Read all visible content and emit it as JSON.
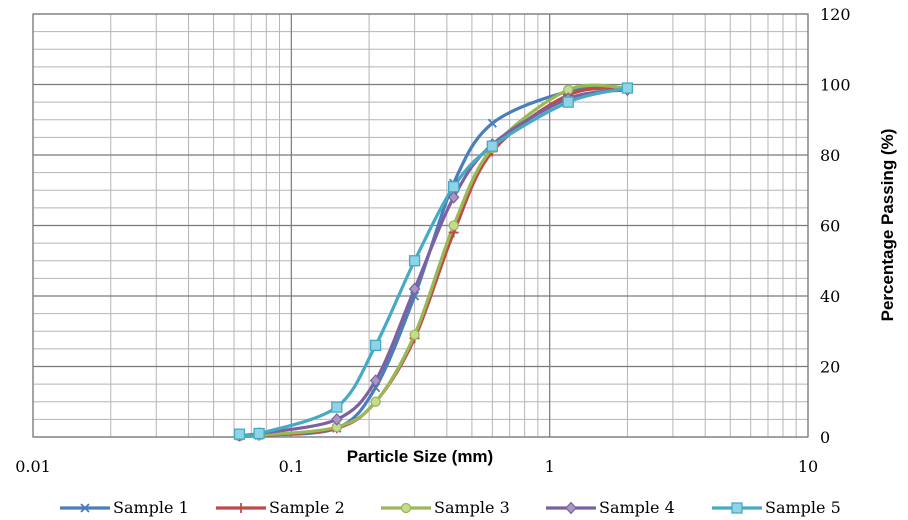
{
  "chart_data": {
    "type": "line",
    "title": "",
    "xlabel": "Particle Size (mm)",
    "ylabel": "Percentage Passing (%)",
    "x_scale": "log",
    "xlim": [
      0.01,
      10
    ],
    "ylim": [
      0,
      120
    ],
    "x_tick_labels": [
      "0.01",
      "0.1",
      "1",
      "10"
    ],
    "y_tick_labels": [
      "0",
      "20",
      "40",
      "60",
      "80",
      "100",
      "120"
    ],
    "grid": true,
    "legend_position": "bottom",
    "series": [
      {
        "name": "Sample 1",
        "color": "#4a7ebb",
        "marker": "x",
        "x": [
          0.063,
          0.075,
          0.15,
          0.212,
          0.3,
          0.425,
          0.6,
          1.18,
          2.0
        ],
        "y": [
          0.3,
          0.5,
          2.5,
          14,
          40,
          72,
          89,
          98,
          99
        ]
      },
      {
        "name": "Sample 2",
        "color": "#be4b48",
        "marker": "plus",
        "x": [
          0.063,
          0.075,
          0.15,
          0.212,
          0.3,
          0.425,
          0.6,
          1.18,
          2.0
        ],
        "y": [
          0.2,
          0.4,
          2.5,
          10,
          28,
          58,
          81,
          97,
          99
        ]
      },
      {
        "name": "Sample 3",
        "color": "#98b954",
        "marker": "circle",
        "x": [
          0.063,
          0.075,
          0.15,
          0.212,
          0.3,
          0.425,
          0.6,
          1.18,
          2.0
        ],
        "y": [
          0.3,
          0.5,
          2.8,
          10,
          29,
          60,
          82,
          98.5,
          99
        ]
      },
      {
        "name": "Sample 4",
        "color": "#7d60a0",
        "marker": "diamond",
        "x": [
          0.063,
          0.075,
          0.15,
          0.212,
          0.3,
          0.425,
          0.6,
          1.18,
          2.0
        ],
        "y": [
          0.5,
          1,
          5,
          16,
          42,
          68,
          83,
          96,
          98.5
        ]
      },
      {
        "name": "Sample 5",
        "color": "#46aac5",
        "marker": "square",
        "x": [
          0.063,
          0.075,
          0.15,
          0.212,
          0.3,
          0.425,
          0.6,
          1.18,
          2.0
        ],
        "y": [
          0.8,
          1,
          8.5,
          26,
          50,
          71,
          82.5,
          95,
          99
        ]
      }
    ]
  }
}
